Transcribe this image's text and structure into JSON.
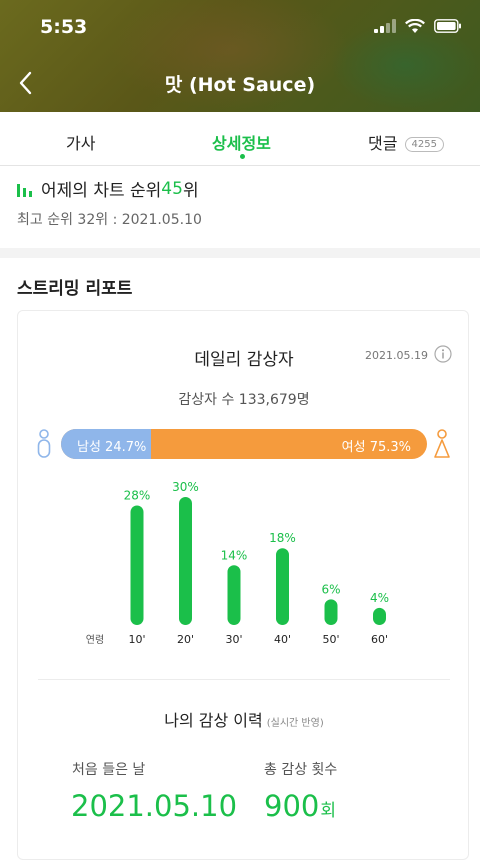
{
  "status_bar": {
    "time": "5:53"
  },
  "header": {
    "title": "맛 (Hot Sauce)"
  },
  "tabs": [
    {
      "label": "가사"
    },
    {
      "label": "상세정보"
    },
    {
      "label": "댓글",
      "badge": "4255"
    }
  ],
  "chart_rank": {
    "prefix": "어제의 차트 순위 ",
    "rank": "45",
    "suffix": "위",
    "best": "최고 순위 32위 : 2021.05.10"
  },
  "report": {
    "title": "스트리밍 리포트",
    "daily_title": "데일리 감상자",
    "date": "2021.05.19",
    "listeners": "감상자 수 133,679명",
    "gender": {
      "male_label": "남성 24.7%",
      "female_label": "여성 75.3%",
      "male_pct": 24.7,
      "female_pct": 75.3
    },
    "history": {
      "title": "나의 감상 이력",
      "subtitle": "(실시간 반영)",
      "first_label": "처음 들은 날",
      "first_value": "2021.05.10",
      "total_label": "총 감상 횟수",
      "total_value": "900",
      "total_unit": "회"
    }
  },
  "colors": {
    "accent": "#1bbf4a",
    "male": "#8fb6ea",
    "female": "#f59b3d"
  },
  "chart_data": {
    "type": "bar",
    "xlabel": "연령",
    "categories": [
      "10'",
      "20'",
      "30'",
      "40'",
      "50'",
      "60'"
    ],
    "values": [
      28,
      30,
      14,
      18,
      6,
      4
    ],
    "value_labels": [
      "28%",
      "30%",
      "14%",
      "18%",
      "6%",
      "4%"
    ],
    "ylim": [
      0,
      30
    ],
    "grid": false
  }
}
